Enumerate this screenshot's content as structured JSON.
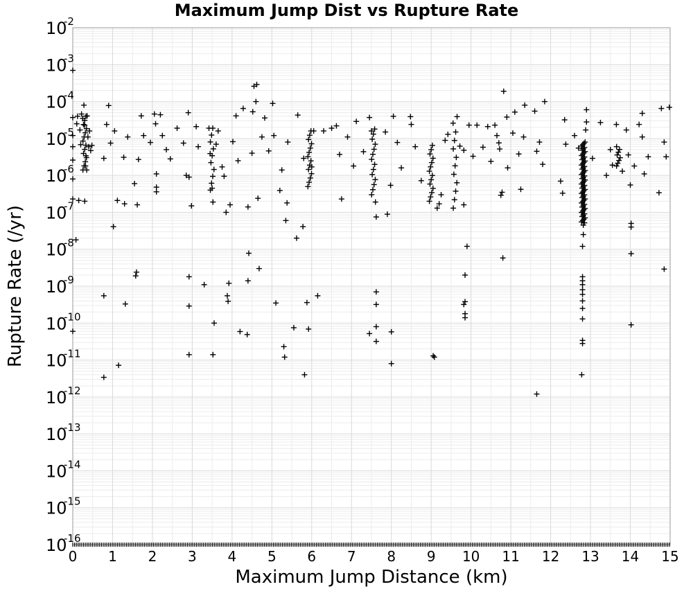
{
  "chart_data": {
    "type": "scatter",
    "title": "Maximum Jump Dist vs Rupture Rate",
    "xlabel": "Maximum Jump Distance (km)",
    "ylabel": "Rupture Rate (/yr)",
    "xlim": [
      0,
      15
    ],
    "ylim": [
      1e-16,
      0.01
    ],
    "yscale": "log",
    "grid": true,
    "marker": "plus",
    "marker_color": "#000000",
    "x_ticks": [
      "0",
      "1",
      "2",
      "3",
      "4",
      "5",
      "6",
      "7",
      "8",
      "9",
      "10",
      "11",
      "12",
      "13",
      "14",
      "15"
    ],
    "y_ticks": [
      {
        "base": "10",
        "exp": "-2"
      },
      {
        "base": "10",
        "exp": "-3"
      },
      {
        "base": "10",
        "exp": "-4"
      },
      {
        "base": "10",
        "exp": "-5"
      },
      {
        "base": "10",
        "exp": "-6"
      },
      {
        "base": "10",
        "exp": "-7"
      },
      {
        "base": "10",
        "exp": "-8"
      },
      {
        "base": "10",
        "exp": "-9"
      },
      {
        "base": "10",
        "exp": "-10"
      },
      {
        "base": "10",
        "exp": "-11"
      },
      {
        "base": "10",
        "exp": "-12"
      },
      {
        "base": "10",
        "exp": "-13"
      },
      {
        "base": "10",
        "exp": "-14"
      },
      {
        "base": "10",
        "exp": "-15"
      },
      {
        "base": "10",
        "exp": "-16"
      }
    ],
    "points": [
      [
        0.0,
        0.0007
      ],
      [
        0.0,
        3.7e-05
      ],
      [
        0.0,
        1.2e-05
      ],
      [
        0.0,
        6e-06
      ],
      [
        0.0,
        2.6e-06
      ],
      [
        0.0,
        8e-07
      ],
      [
        0.0,
        2.3e-07
      ],
      [
        0.0,
        6e-11
      ],
      [
        0.08,
        1.8e-08
      ],
      [
        0.1,
        2.5e-05
      ],
      [
        0.12,
        4e-05
      ],
      [
        0.15,
        2.1e-07
      ],
      [
        0.18,
        1.7e-05
      ],
      [
        0.2,
        6.8e-06
      ],
      [
        0.22,
        4.6e-05
      ],
      [
        0.25,
        3.5e-05
      ],
      [
        0.28,
        8e-05
      ],
      [
        0.3,
        2.3e-05
      ],
      [
        0.3,
        2e-07
      ],
      [
        0.32,
        1.8e-06
      ],
      [
        0.33,
        3.4e-06
      ],
      [
        0.35,
        1.4e-06
      ],
      [
        0.36,
        4.1e-05
      ],
      [
        0.38,
        1.1e-05
      ],
      [
        0.4,
        6e-06
      ],
      [
        0.42,
        1.6e-05
      ],
      [
        0.45,
        4.7e-06
      ],
      [
        0.48,
        6.5e-06
      ],
      [
        0.78,
        2.9e-06
      ],
      [
        0.78,
        5.5e-10
      ],
      [
        0.78,
        3.4e-12
      ],
      [
        0.85,
        2.4e-05
      ],
      [
        0.9,
        7.8e-05
      ],
      [
        0.95,
        7.5e-06
      ],
      [
        1.02,
        4.1e-08
      ],
      [
        1.05,
        1.6e-05
      ],
      [
        1.12,
        2.1e-07
      ],
      [
        1.15,
        7.2e-12
      ],
      [
        1.28,
        3.1e-06
      ],
      [
        1.3,
        1.7e-07
      ],
      [
        1.32,
        3.3e-10
      ],
      [
        1.38,
        1.1e-05
      ],
      [
        1.55,
        6e-07
      ],
      [
        1.58,
        1.9e-09
      ],
      [
        1.6,
        2.4e-09
      ],
      [
        1.62,
        1.6e-07
      ],
      [
        1.65,
        2.7e-06
      ],
      [
        1.72,
        4.1e-05
      ],
      [
        1.78,
        1.2e-05
      ],
      [
        1.95,
        7.8e-06
      ],
      [
        2.05,
        4.6e-05
      ],
      [
        2.08,
        2.5e-05
      ],
      [
        2.1,
        1.1e-06
      ],
      [
        2.1,
        4.8e-07
      ],
      [
        2.1,
        3.6e-07
      ],
      [
        2.2,
        4.4e-05
      ],
      [
        2.25,
        1.2e-05
      ],
      [
        2.35,
        5e-06
      ],
      [
        2.45,
        2.8e-06
      ],
      [
        2.62,
        1.9e-05
      ],
      [
        2.78,
        7.5e-06
      ],
      [
        2.85,
        1e-06
      ],
      [
        2.9,
        5e-05
      ],
      [
        2.92,
        9e-07
      ],
      [
        2.92,
        1.8e-09
      ],
      [
        2.92,
        2.9e-10
      ],
      [
        2.92,
        1.4e-11
      ],
      [
        2.98,
        1.5e-07
      ],
      [
        3.1,
        2.1e-05
      ],
      [
        3.15,
        6e-06
      ],
      [
        3.3,
        1.1e-09
      ],
      [
        3.42,
        1.9e-05
      ],
      [
        3.45,
        3.9e-06
      ],
      [
        3.5,
        4.5e-07
      ],
      [
        3.52,
        1.9e-07
      ],
      [
        3.55,
        1e-10
      ],
      [
        3.52,
        1.4e-11
      ],
      [
        3.6,
        7e-06
      ],
      [
        3.65,
        1.6e-05
      ],
      [
        3.75,
        1.7e-06
      ],
      [
        3.8,
        9.5e-07
      ],
      [
        3.85,
        1e-07
      ],
      [
        3.88,
        5.5e-10
      ],
      [
        3.9,
        3.9e-10
      ],
      [
        3.92,
        1.2e-09
      ],
      [
        3.95,
        1.6e-07
      ],
      [
        4.02,
        8.2e-06
      ],
      [
        4.1,
        4.1e-05
      ],
      [
        4.15,
        2.5e-06
      ],
      [
        4.2,
        5.9e-11
      ],
      [
        4.28,
        6.5e-05
      ],
      [
        4.38,
        4.9e-11
      ],
      [
        4.4,
        1.4e-07
      ],
      [
        4.4,
        1.4e-09
      ],
      [
        4.42,
        7.8e-09
      ],
      [
        4.5,
        4e-06
      ],
      [
        4.52,
        5.3e-05
      ],
      [
        4.55,
        0.00026
      ],
      [
        4.62,
        0.00029
      ],
      [
        4.6,
        0.0001
      ],
      [
        4.65,
        2.4e-07
      ],
      [
        4.68,
        3e-09
      ],
      [
        4.75,
        1.1e-05
      ],
      [
        4.82,
        3.6e-05
      ],
      [
        4.92,
        4.6e-06
      ],
      [
        5.02,
        8.9e-05
      ],
      [
        5.05,
        1.2e-05
      ],
      [
        5.1,
        3.5e-10
      ],
      [
        5.2,
        3.9e-07
      ],
      [
        5.25,
        1.4e-06
      ],
      [
        5.3,
        2.3e-11
      ],
      [
        5.32,
        1.2e-11
      ],
      [
        5.35,
        6e-08
      ],
      [
        5.38,
        1.8e-07
      ],
      [
        5.4,
        8e-06
      ],
      [
        5.55,
        7.5e-11
      ],
      [
        5.62,
        2e-08
      ],
      [
        5.65,
        4.3e-05
      ],
      [
        5.78,
        4.1e-08
      ],
      [
        5.8,
        2.9e-06
      ],
      [
        5.82,
        4e-12
      ],
      [
        5.88,
        3.6e-10
      ],
      [
        5.92,
        6.9e-11
      ],
      [
        6.0,
        1.7e-06
      ],
      [
        6.05,
        1.6e-05
      ],
      [
        6.15,
        5.5e-10
      ],
      [
        6.3,
        1.6e-05
      ],
      [
        6.5,
        1.9e-05
      ],
      [
        6.62,
        2.2e-05
      ],
      [
        6.7,
        3.7e-06
      ],
      [
        6.75,
        2.3e-07
      ],
      [
        6.9,
        1.1e-05
      ],
      [
        7.05,
        1.8e-06
      ],
      [
        7.12,
        2.9e-05
      ],
      [
        7.3,
        4.4e-06
      ],
      [
        7.45,
        3.7e-05
      ],
      [
        7.45,
        5.2e-11
      ],
      [
        7.5,
        1.6e-05
      ],
      [
        7.6,
        1.9e-07
      ],
      [
        7.62,
        7e-10
      ],
      [
        7.62,
        3.2e-10
      ],
      [
        7.62,
        8e-11
      ],
      [
        7.62,
        3.2e-11
      ],
      [
        7.62,
        7.5e-08
      ],
      [
        7.85,
        1.5e-05
      ],
      [
        7.9,
        8.9e-08
      ],
      [
        7.98,
        5.4e-07
      ],
      [
        8.0,
        5.8e-11
      ],
      [
        8.0,
        8e-12
      ],
      [
        8.05,
        4e-05
      ],
      [
        8.15,
        7.8e-06
      ],
      [
        8.25,
        1.6e-06
      ],
      [
        8.48,
        3.9e-05
      ],
      [
        8.5,
        2.4e-05
      ],
      [
        8.6,
        6e-06
      ],
      [
        8.75,
        7.2e-07
      ],
      [
        9.05,
        1.3e-11
      ],
      [
        9.08,
        1.2e-11
      ],
      [
        9.15,
        1.3e-07
      ],
      [
        9.2,
        1.7e-07
      ],
      [
        9.25,
        3e-07
      ],
      [
        9.35,
        8.9e-06
      ],
      [
        9.42,
        1.3e-05
      ],
      [
        9.55,
        2.6e-05
      ],
      [
        9.65,
        3.9e-05
      ],
      [
        9.72,
        6.2e-06
      ],
      [
        9.82,
        4.8e-06
      ],
      [
        9.82,
        1.6e-07
      ],
      [
        9.85,
        2e-09
      ],
      [
        9.82,
        3.2e-10
      ],
      [
        9.85,
        3.8e-10
      ],
      [
        9.85,
        1.8e-10
      ],
      [
        9.85,
        1.4e-10
      ],
      [
        9.9,
        1.2e-08
      ],
      [
        9.95,
        2.3e-05
      ],
      [
        10.05,
        3.3e-06
      ],
      [
        10.15,
        2.3e-05
      ],
      [
        10.3,
        5.8e-06
      ],
      [
        10.42,
        2.1e-05
      ],
      [
        10.5,
        2.4e-06
      ],
      [
        10.6,
        2.3e-05
      ],
      [
        10.65,
        1.2e-05
      ],
      [
        10.7,
        7.6e-06
      ],
      [
        10.72,
        5.2e-06
      ],
      [
        10.75,
        2.9e-07
      ],
      [
        10.78,
        3.5e-07
      ],
      [
        10.8,
        5.8e-09
      ],
      [
        10.82,
        0.00019
      ],
      [
        10.9,
        3.8e-05
      ],
      [
        10.92,
        1.6e-06
      ],
      [
        11.05,
        1.4e-05
      ],
      [
        11.1,
        5.2e-05
      ],
      [
        11.2,
        3.8e-06
      ],
      [
        11.25,
        4.2e-07
      ],
      [
        11.32,
        1.1e-05
      ],
      [
        11.35,
        8e-05
      ],
      [
        11.6,
        5.5e-05
      ],
      [
        11.65,
        4.5e-06
      ],
      [
        11.65,
        1.2e-12
      ],
      [
        11.72,
        8e-06
      ],
      [
        11.8,
        2e-06
      ],
      [
        11.85,
        0.0001
      ],
      [
        12.25,
        7e-07
      ],
      [
        12.3,
        3.3e-07
      ],
      [
        12.35,
        3.2e-05
      ],
      [
        12.38,
        7e-06
      ],
      [
        12.6,
        1.2e-05
      ],
      [
        12.7,
        5.5e-06
      ],
      [
        12.78,
        4e-12
      ],
      [
        12.8,
        2.8e-11
      ],
      [
        12.8,
        3.4e-11
      ],
      [
        12.8,
        1.3e-10
      ],
      [
        12.8,
        2.5e-10
      ],
      [
        12.8,
        4e-10
      ],
      [
        12.8,
        6e-10
      ],
      [
        12.8,
        8e-10
      ],
      [
        12.8,
        1.1e-09
      ],
      [
        12.8,
        1.4e-09
      ],
      [
        12.8,
        1.8e-09
      ],
      [
        12.8,
        1.2e-08
      ],
      [
        12.82,
        2.5e-08
      ],
      [
        12.82,
        4.5e-08
      ],
      [
        12.85,
        5.2e-08
      ],
      [
        12.88,
        1.7e-05
      ],
      [
        12.9,
        2.8e-05
      ],
      [
        12.9,
        6e-05
      ],
      [
        13.05,
        2.9e-06
      ],
      [
        13.25,
        2.7e-05
      ],
      [
        13.4,
        1e-06
      ],
      [
        13.5,
        5e-06
      ],
      [
        13.55,
        1.9e-06
      ],
      [
        13.65,
        2.4e-05
      ],
      [
        13.8,
        1.3e-06
      ],
      [
        13.9,
        1.7e-05
      ],
      [
        13.95,
        3.6e-06
      ],
      [
        14.0,
        5.5e-07
      ],
      [
        14.02,
        4e-08
      ],
      [
        14.02,
        5e-08
      ],
      [
        14.02,
        7.6e-09
      ],
      [
        14.02,
        9e-11
      ],
      [
        14.1,
        1.8e-06
      ],
      [
        14.22,
        2.4e-05
      ],
      [
        14.3,
        4.8e-05
      ],
      [
        14.3,
        1.1e-05
      ],
      [
        14.35,
        1.1e-06
      ],
      [
        14.45,
        3.2e-06
      ],
      [
        14.72,
        3.4e-07
      ],
      [
        14.78,
        6.5e-05
      ],
      [
        14.85,
        8e-06
      ],
      [
        14.85,
        2.9e-09
      ],
      [
        14.9,
        3.2e-06
      ],
      [
        14.98,
        7e-05
      ]
    ],
    "vertical_clusters": [
      {
        "x": 0.3,
        "y_min": 1.4e-06,
        "y_max": 4e-05,
        "count": 14
      },
      {
        "x": 3.5,
        "y_min": 4e-07,
        "y_max": 1.9e-05,
        "count": 10
      },
      {
        "x": 5.95,
        "y_min": 5e-07,
        "y_max": 1.6e-05,
        "count": 14
      },
      {
        "x": 7.55,
        "y_min": 3e-07,
        "y_max": 1.8e-05,
        "count": 14
      },
      {
        "x": 9.0,
        "y_min": 2e-07,
        "y_max": 6.5e-06,
        "count": 14
      },
      {
        "x": 9.6,
        "y_min": 1.3e-07,
        "y_max": 1.5e-05,
        "count": 10
      },
      {
        "x": 12.82,
        "y_min": 5.5e-08,
        "y_max": 8e-06,
        "count": 60
      },
      {
        "x": 13.7,
        "y_min": 1.8e-06,
        "y_max": 6e-06,
        "count": 8
      }
    ],
    "floor_value": 1e-16
  }
}
